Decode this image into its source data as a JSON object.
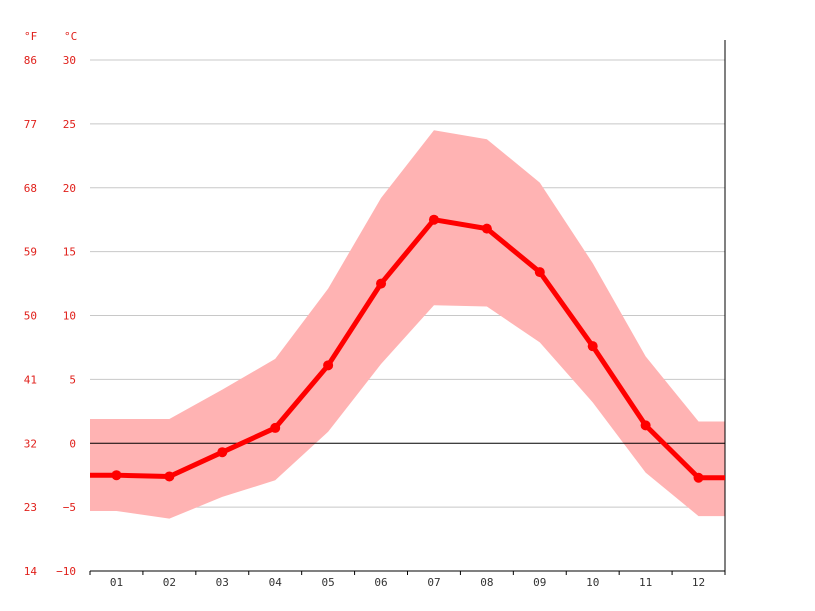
{
  "chart_data": {
    "type": "line",
    "title": "",
    "units": {
      "fahrenheit": "°F",
      "celsius": "°C"
    },
    "categories": [
      "01",
      "02",
      "03",
      "04",
      "05",
      "06",
      "07",
      "08",
      "09",
      "10",
      "11",
      "12"
    ],
    "ylim": [
      -10,
      30
    ],
    "grid": true,
    "y_ticks_c": [
      "30",
      "25",
      "20",
      "15",
      "10",
      "5",
      "0",
      "−5",
      "−10"
    ],
    "y_ticks_f": [
      "86",
      "77",
      "68",
      "59",
      "50",
      "41",
      "32",
      "23",
      "14"
    ],
    "series": [
      {
        "role": "average",
        "values": [
          -2.5,
          -2.6,
          -0.7,
          1.2,
          6.1,
          12.5,
          17.5,
          16.8,
          13.4,
          7.6,
          1.4,
          -2.7
        ]
      },
      {
        "role": "max",
        "values": [
          1.9,
          1.9,
          4.2,
          6.6,
          12.1,
          19.2,
          24.5,
          23.8,
          20.4,
          14.1,
          6.8,
          1.7
        ]
      },
      {
        "role": "min",
        "values": [
          -5.3,
          -5.9,
          -4.2,
          -2.9,
          0.9,
          6.2,
          10.8,
          10.7,
          7.9,
          3.2,
          -2.3,
          -5.7
        ]
      }
    ],
    "colors": {
      "average": "#ff0000",
      "range": "#ffb3b3",
      "grid": "#c8c8c8",
      "zero": "#000000",
      "labels": "#e0201b"
    }
  }
}
